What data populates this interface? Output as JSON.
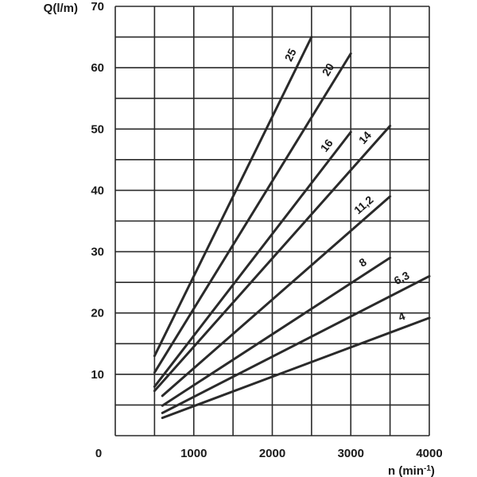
{
  "chart_data": {
    "type": "line",
    "ylabel": "Q(l/m)",
    "xlabel": "n (min-1)",
    "xlabel_unit_base": "n (min",
    "xlabel_unit_sup": "-1",
    "xlabel_unit_close": ")",
    "origin_label": "0",
    "xlim": [
      0,
      4000
    ],
    "ylim": [
      0,
      70
    ],
    "x_ticks": [
      1000,
      2000,
      3000,
      4000
    ],
    "x_tick_labels": [
      "1000",
      "2000",
      "3000",
      "4000"
    ],
    "y_ticks": [
      10,
      20,
      30,
      40,
      50,
      60,
      70
    ],
    "y_tick_labels": [
      "10",
      "20",
      "30",
      "40",
      "50",
      "60",
      "70"
    ],
    "grid": true,
    "grid_x_step": 500,
    "grid_y_step": 5,
    "series": [
      {
        "name": "25",
        "label": "25",
        "points": [
          [
            500,
            13
          ],
          [
            2500,
            65
          ]
        ]
      },
      {
        "name": "20",
        "label": "20",
        "points": [
          [
            500,
            10.3
          ],
          [
            3000,
            62.3
          ]
        ]
      },
      {
        "name": "16",
        "label": "16",
        "points": [
          [
            500,
            8
          ],
          [
            3000,
            49.5
          ]
        ]
      },
      {
        "name": "14",
        "label": "14",
        "points": [
          [
            500,
            7.3
          ],
          [
            3500,
            50.5
          ]
        ]
      },
      {
        "name": "11,2",
        "label": "11,2",
        "points": [
          [
            600,
            6.5
          ],
          [
            3500,
            39
          ]
        ]
      },
      {
        "name": "8",
        "label": "8",
        "points": [
          [
            600,
            4.9
          ],
          [
            3500,
            29
          ]
        ]
      },
      {
        "name": "6,3",
        "label": "6,3",
        "points": [
          [
            600,
            3.7
          ],
          [
            4000,
            26
          ]
        ]
      },
      {
        "name": "4",
        "label": "4",
        "points": [
          [
            600,
            2.9
          ],
          [
            4000,
            19.2
          ]
        ]
      }
    ]
  }
}
